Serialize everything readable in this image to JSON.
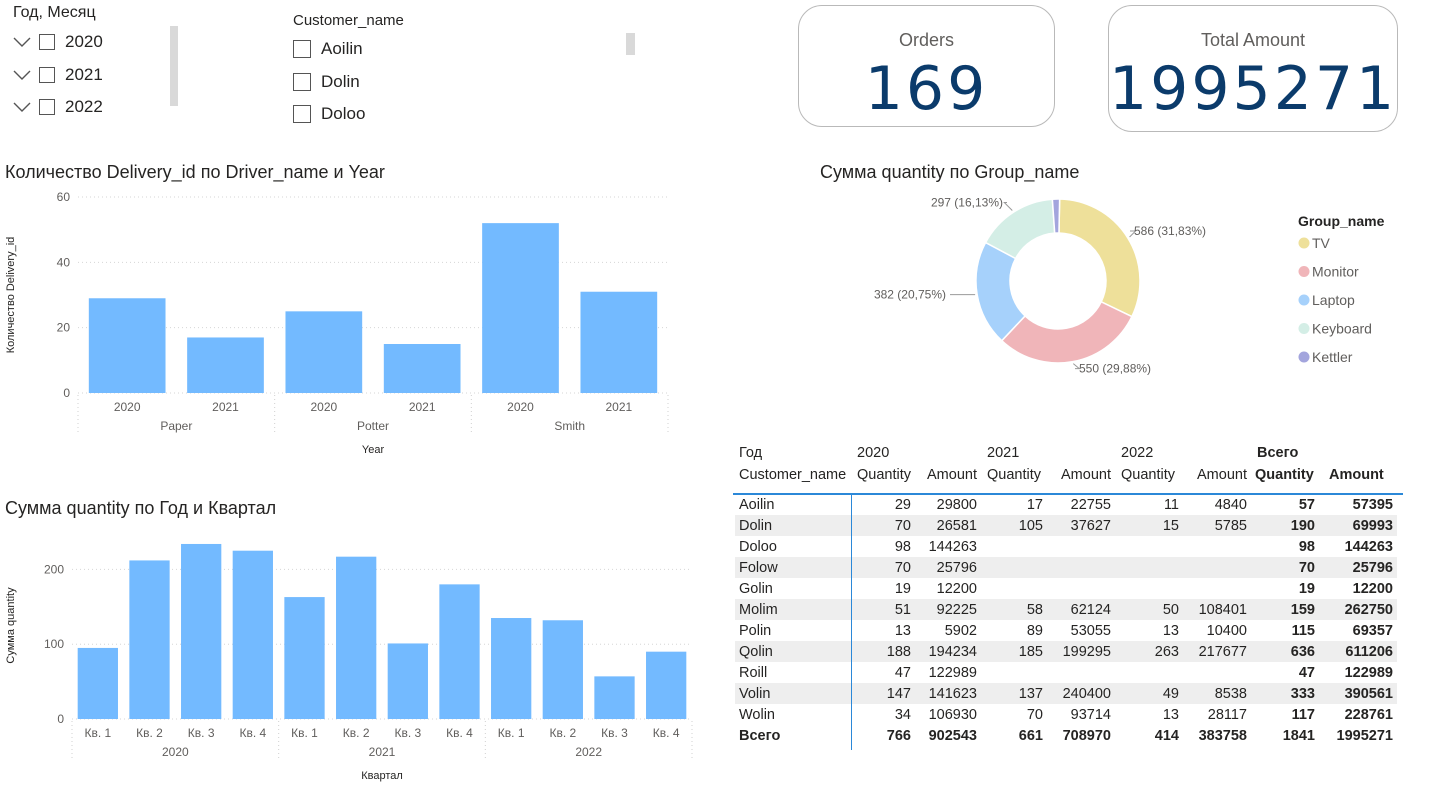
{
  "slicer_year": {
    "title": "Год, Месяц",
    "items": [
      "2020",
      "2021",
      "2022"
    ]
  },
  "slicer_customer": {
    "title": "Customer_name",
    "items": [
      "Aoilin",
      "Dolin",
      "Doloo"
    ]
  },
  "cards": {
    "orders_label": "Orders",
    "orders_value": "169",
    "amount_label": "Total Amount",
    "amount_value": "1995271"
  },
  "bar_title": "Количество Delivery_id по Driver_name и Year",
  "pie_title": "Сумма quantity по Group_name",
  "quarter_title": "Сумма quantity по Год и Квартал",
  "colors": {
    "bar": "#73baff",
    "card_value": "#0b3b6b",
    "table_line": "#2b88d8"
  },
  "chart_data": [
    {
      "type": "bar",
      "title": "Количество Delivery_id по Driver_name и Year",
      "ylabel": "Количество Delivery_id",
      "xlabel": "Year",
      "ylim": [
        0,
        60
      ],
      "yticks": [
        "0",
        "20",
        "40",
        "60"
      ],
      "groups": [
        {
          "name": "Paper",
          "categories": [
            "2020",
            "2021"
          ],
          "values": [
            29,
            17
          ]
        },
        {
          "name": "Potter",
          "categories": [
            "2020",
            "2021"
          ],
          "values": [
            25,
            15
          ]
        },
        {
          "name": "Smith",
          "categories": [
            "2020",
            "2021"
          ],
          "values": [
            52,
            31
          ]
        }
      ]
    },
    {
      "type": "pie",
      "title": "Сумма quantity по Group_name",
      "legend_title": "Group_name",
      "legend_position": "right",
      "slices": [
        {
          "name": "TV",
          "value": 586,
          "label": "586 (31,83%)",
          "color": "#eee09a"
        },
        {
          "name": "Monitor",
          "value": 550,
          "label": "550 (29,88%)",
          "color": "#f0b5b9"
        },
        {
          "name": "Laptop",
          "value": 382,
          "label": "382 (20,75%)",
          "color": "#a6d1fb"
        },
        {
          "name": "Keyboard",
          "value": 297,
          "label": "297 (16,13%)",
          "color": "#d4eee6"
        },
        {
          "name": "Kettler",
          "value": 26,
          "label": "",
          "color": "#a3a5dd"
        }
      ]
    },
    {
      "type": "bar",
      "title": "Сумма quantity по Год и Квартал",
      "ylabel": "Сумма quantity",
      "xlabel": "Квартал",
      "ylim": [
        0,
        250
      ],
      "yticks": [
        "0",
        "100",
        "200"
      ],
      "groups": [
        {
          "name": "2020",
          "categories": [
            "Кв. 1",
            "Кв. 2",
            "Кв. 3",
            "Кв. 4"
          ],
          "values": [
            95,
            212,
            234,
            225
          ]
        },
        {
          "name": "2021",
          "categories": [
            "Кв. 1",
            "Кв. 2",
            "Кв. 3",
            "Кв. 4"
          ],
          "values": [
            163,
            217,
            101,
            180
          ]
        },
        {
          "name": "2022",
          "categories": [
            "Кв. 1",
            "Кв. 2",
            "Кв. 3",
            "Кв. 4"
          ],
          "values": [
            135,
            132,
            57,
            90
          ]
        }
      ]
    }
  ],
  "table": {
    "corner_top": "Год",
    "corner_bottom": "Customer_name",
    "years": [
      "2020",
      "2021",
      "2022",
      "Всего"
    ],
    "sub": [
      "Quantity",
      "Amount",
      "Quantity",
      "Amount",
      "Quantity",
      "Amount",
      "Quantity",
      "Amount"
    ],
    "rows": [
      [
        "Aoilin",
        "29",
        "29800",
        "17",
        "22755",
        "11",
        "4840",
        "57",
        "57395"
      ],
      [
        "Dolin",
        "70",
        "26581",
        "105",
        "37627",
        "15",
        "5785",
        "190",
        "69993"
      ],
      [
        "Doloo",
        "98",
        "144263",
        "",
        "",
        "",
        "",
        "98",
        "144263"
      ],
      [
        "Folow",
        "70",
        "25796",
        "",
        "",
        "",
        "",
        "70",
        "25796"
      ],
      [
        "Golin",
        "19",
        "12200",
        "",
        "",
        "",
        "",
        "19",
        "12200"
      ],
      [
        "Molim",
        "51",
        "92225",
        "58",
        "62124",
        "50",
        "108401",
        "159",
        "262750"
      ],
      [
        "Polin",
        "13",
        "5902",
        "89",
        "53055",
        "13",
        "10400",
        "115",
        "69357"
      ],
      [
        "Qolin",
        "188",
        "194234",
        "185",
        "199295",
        "263",
        "217677",
        "636",
        "611206"
      ],
      [
        "Roill",
        "47",
        "122989",
        "",
        "",
        "",
        "",
        "47",
        "122989"
      ],
      [
        "Volin",
        "147",
        "141623",
        "137",
        "240400",
        "49",
        "8538",
        "333",
        "390561"
      ],
      [
        "Wolin",
        "34",
        "106930",
        "70",
        "93714",
        "13",
        "28117",
        "117",
        "228761"
      ]
    ],
    "total": [
      "Всего",
      "766",
      "902543",
      "661",
      "708970",
      "414",
      "383758",
      "1841",
      "1995271"
    ]
  }
}
